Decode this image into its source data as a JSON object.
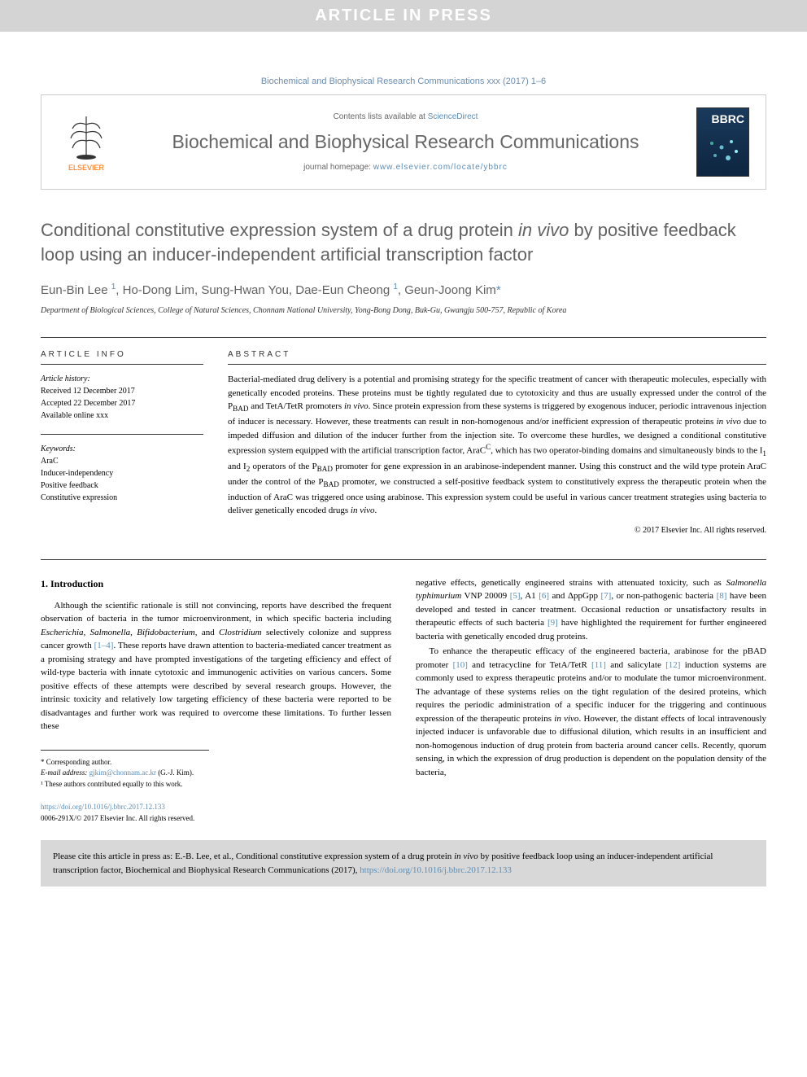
{
  "banner": {
    "text": "ARTICLE IN PRESS"
  },
  "citation_header": "Biochemical and Biophysical Research Communications xxx (2017) 1–6",
  "header": {
    "elsevier": "ELSEVIER",
    "contents_prefix": "Contents lists available at ",
    "contents_link": "ScienceDirect",
    "journal_name": "Biochemical and Biophysical Research Communications",
    "homepage_prefix": "journal homepage: ",
    "homepage_link": "www.elsevier.com/locate/ybbrc",
    "cover_abbrev": "BBRC"
  },
  "title": {
    "pre": "Conditional constitutive expression system of a drug protein ",
    "italic": "in vivo",
    "post": " by positive feedback loop using an inducer-independent artificial transcription factor"
  },
  "authors_html": "Eun-Bin Lee <sup>1</sup>, Ho-Dong Lim, Sung-Hwan You, Dae-Eun Cheong <sup>1</sup>, Geun-Joong Kim<span class=\"asterisk\">*</span>",
  "affiliation": "Department of Biological Sciences, College of Natural Sciences, Chonnam National University, Yong-Bong Dong, Buk-Gu, Gwangju 500-757, Republic of Korea",
  "article_info": {
    "header": "ARTICLE INFO",
    "history_label": "Article history:",
    "received": "Received 12 December 2017",
    "accepted": "Accepted 22 December 2017",
    "available": "Available online xxx",
    "keywords_label": "Keywords:",
    "kw1": "AraC",
    "kw2": "Inducer-independency",
    "kw3": "Positive feedback",
    "kw4": "Constitutive expression"
  },
  "abstract": {
    "header": "ABSTRACT",
    "text_html": "Bacterial-mediated drug delivery is a potential and promising strategy for the specific treatment of cancer with therapeutic molecules, especially with genetically encoded proteins. These proteins must be tightly regulated due to cytotoxicity and thus are usually expressed under the control of the P<sub>BAD</sub> and TetA/TetR promoters <span class=\"italic\">in vivo</span>. Since protein expression from these systems is triggered by exogenous inducer, periodic intravenous injection of inducer is necessary. However, these treatments can result in non-homogenous and/or inefficient expression of therapeutic proteins <span class=\"italic\">in vivo</span> due to impeded diffusion and dilution of the inducer further from the injection site. To overcome these hurdles, we designed a conditional constitutive expression system equipped with the artificial transcription factor, AraC<sup>C</sup>, which has two operator-binding domains and simultaneously binds to the I<sub>1</sub> and I<sub>2</sub> operators of the P<sub>BAD</sub> promoter for gene expression in an arabinose-independent manner. Using this construct and the wild type protein AraC under the control of the P<sub>BAD</sub> promoter, we constructed a self-positive feedback system to constitutively express the therapeutic protein when the induction of AraC was triggered once using arabinose. This expression system could be useful in various cancer treatment strategies using bacteria to deliver genetically encoded drugs <span class=\"italic\">in vivo</span>.",
    "copyright": "© 2017 Elsevier Inc. All rights reserved."
  },
  "intro": {
    "heading": "1. Introduction",
    "p1_html": "Although the scientific rationale is still not convincing, reports have described the frequent observation of bacteria in the tumor microenvironment, in which specific bacteria including <span class=\"italic\">Escherichia</span>, <span class=\"italic\">Salmonella</span>, <span class=\"italic\">Bifidobacterium</span>, and <span class=\"italic\">Clostridium</span> selectively colonize and suppress cancer growth <span class=\"ref-link\">[1–4]</span>. These reports have drawn attention to bacteria-mediated cancer treatment as a promising strategy and have prompted investigations of the targeting efficiency and effect of wild-type bacteria with innate cytotoxic and immunogenic activities on various cancers. Some positive effects of these attempts were described by several research groups. However, the intrinsic toxicity and relatively low targeting efficiency of these bacteria were reported to be disadvantages and further work was required to overcome these limitations. To further lessen these",
    "p2_html": "negative effects, genetically engineered strains with attenuated toxicity, such as <span class=\"italic\">Salmonella typhimurium</span> VNP 20009 <span class=\"ref-link\">[5]</span>, A1 <span class=\"ref-link\">[6]</span> and ΔppGpp <span class=\"ref-link\">[7]</span>, or non-pathogenic bacteria <span class=\"ref-link\">[8]</span> have been developed and tested in cancer treatment. Occasional reduction or unsatisfactory results in therapeutic effects of such bacteria <span class=\"ref-link\">[9]</span> have highlighted the requirement for further engineered bacteria with genetically encoded drug proteins.",
    "p3_html": "To enhance the therapeutic efficacy of the engineered bacteria, arabinose for the pBAD promoter <span class=\"ref-link\">[10]</span> and tetracycline for TetA/TetR <span class=\"ref-link\">[11]</span> and salicylate <span class=\"ref-link\">[12]</span> induction systems are commonly used to express therapeutic proteins and/or to modulate the tumor microenvironment. The advantage of these systems relies on the tight regulation of the desired proteins, which requires the periodic administration of a specific inducer for the triggering and continuous expression of the therapeutic proteins <span class=\"italic\">in vivo</span>. However, the distant effects of local intravenously injected inducer is unfavorable due to diffusional dilution, which results in an insufficient and non-homogenous induction of drug protein from bacteria around cancer cells. Recently, quorum sensing, in which the expression of drug production is dependent on the population density of the bacteria,"
  },
  "footnotes": {
    "corr": "* Corresponding author.",
    "email_label": "E-mail address: ",
    "email": "gjkim@chonnam.ac.kr",
    "email_name": " (G.-J. Kim).",
    "contrib": "¹ These authors contributed equally to this work."
  },
  "doi": {
    "link": "https://doi.org/10.1016/j.bbrc.2017.12.133",
    "copyright": "0006-291X/© 2017 Elsevier Inc. All rights reserved."
  },
  "citebox_html": "Please cite this article in press as: E.-B. Lee, et al., Conditional constitutive expression system of a drug protein <span class=\"italic\">in vivo</span> by positive feedback loop using an inducer-independent artificial transcription factor, Biochemical and Biophysical Research Communications (2017), <a>https://doi.org/10.1016/j.bbrc.2017.12.133</a>",
  "colors": {
    "link": "#5a8db5",
    "banner_bg": "#d4d4d4",
    "elsevier_orange": "#ff6b00",
    "title_gray": "#626262"
  }
}
